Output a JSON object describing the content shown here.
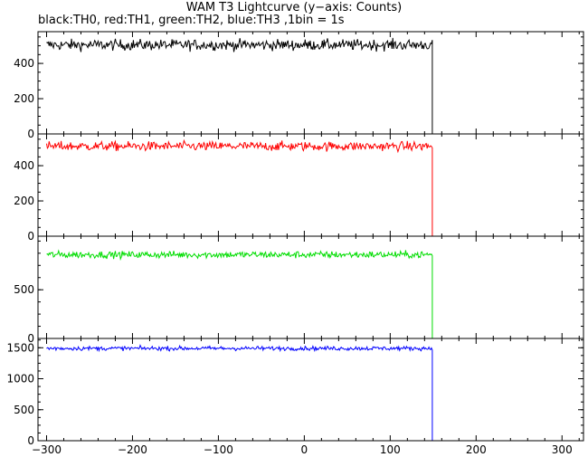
{
  "title": "WAM T3 Lightcurve (y−axis: Counts)",
  "subtitle": "black:TH0, red:TH1, green:TH2, blue:TH3 ,1bin = 1s",
  "chart_data": {
    "type": "line",
    "xlim": [
      -310,
      325
    ],
    "x_ticks": [
      -300,
      -200,
      -100,
      0,
      100,
      200,
      300
    ],
    "x_tick_labels": [
      "−300",
      "−200",
      "−100",
      "0",
      "100",
      "200",
      "300"
    ],
    "drop_x": 149,
    "x_start": -300,
    "x_end": 325,
    "panels": [
      {
        "name": "TH0",
        "color": "#000000",
        "ylim": [
          0,
          580
        ],
        "level": 505,
        "noise": 26,
        "y_ticks": [
          0,
          200,
          400
        ],
        "y_tick_labels": [
          "0",
          "200",
          "400"
        ]
      },
      {
        "name": "TH1",
        "color": "#ff0000",
        "ylim": [
          0,
          580
        ],
        "level": 510,
        "noise": 22,
        "y_ticks": [
          0,
          200,
          400
        ],
        "y_tick_labels": [
          "0",
          "200",
          "400"
        ]
      },
      {
        "name": "TH2",
        "color": "#00dd00",
        "ylim": [
          0,
          1050
        ],
        "level": 860,
        "noise": 30,
        "y_ticks": [
          0,
          500
        ],
        "y_tick_labels": [
          "0",
          "500"
        ]
      },
      {
        "name": "TH3",
        "color": "#0000ff",
        "ylim": [
          0,
          1650
        ],
        "level": 1490,
        "noise": 28,
        "y_ticks": [
          0,
          500,
          1000,
          1500
        ],
        "y_tick_labels": [
          "0",
          "500",
          "1000",
          "1500"
        ]
      }
    ]
  }
}
